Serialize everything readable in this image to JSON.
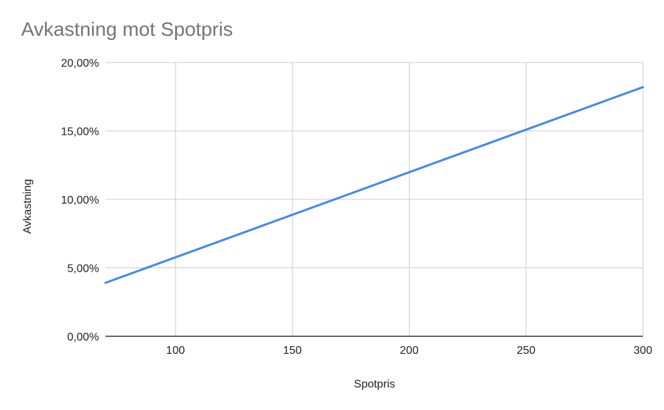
{
  "chart_data": {
    "type": "line",
    "title": "Avkastning mot Spotpris",
    "xlabel": "Spotpris",
    "ylabel": "Avkastning",
    "xlim": [
      70,
      300
    ],
    "ylim": [
      0,
      0.2
    ],
    "x_ticks": [
      100,
      150,
      200,
      250,
      300
    ],
    "x_tick_labels": [
      "100",
      "150",
      "200",
      "250",
      "300"
    ],
    "y_ticks": [
      0,
      0.05,
      0.1,
      0.15,
      0.2
    ],
    "y_tick_labels": [
      "0,00%",
      "5,00%",
      "10,00%",
      "15,00%",
      "20,00%"
    ],
    "grid": true,
    "legend": "none",
    "series": [
      {
        "color": "#4285f4",
        "x": [
          70,
          300
        ],
        "y": [
          0.039,
          0.182
        ]
      }
    ]
  }
}
